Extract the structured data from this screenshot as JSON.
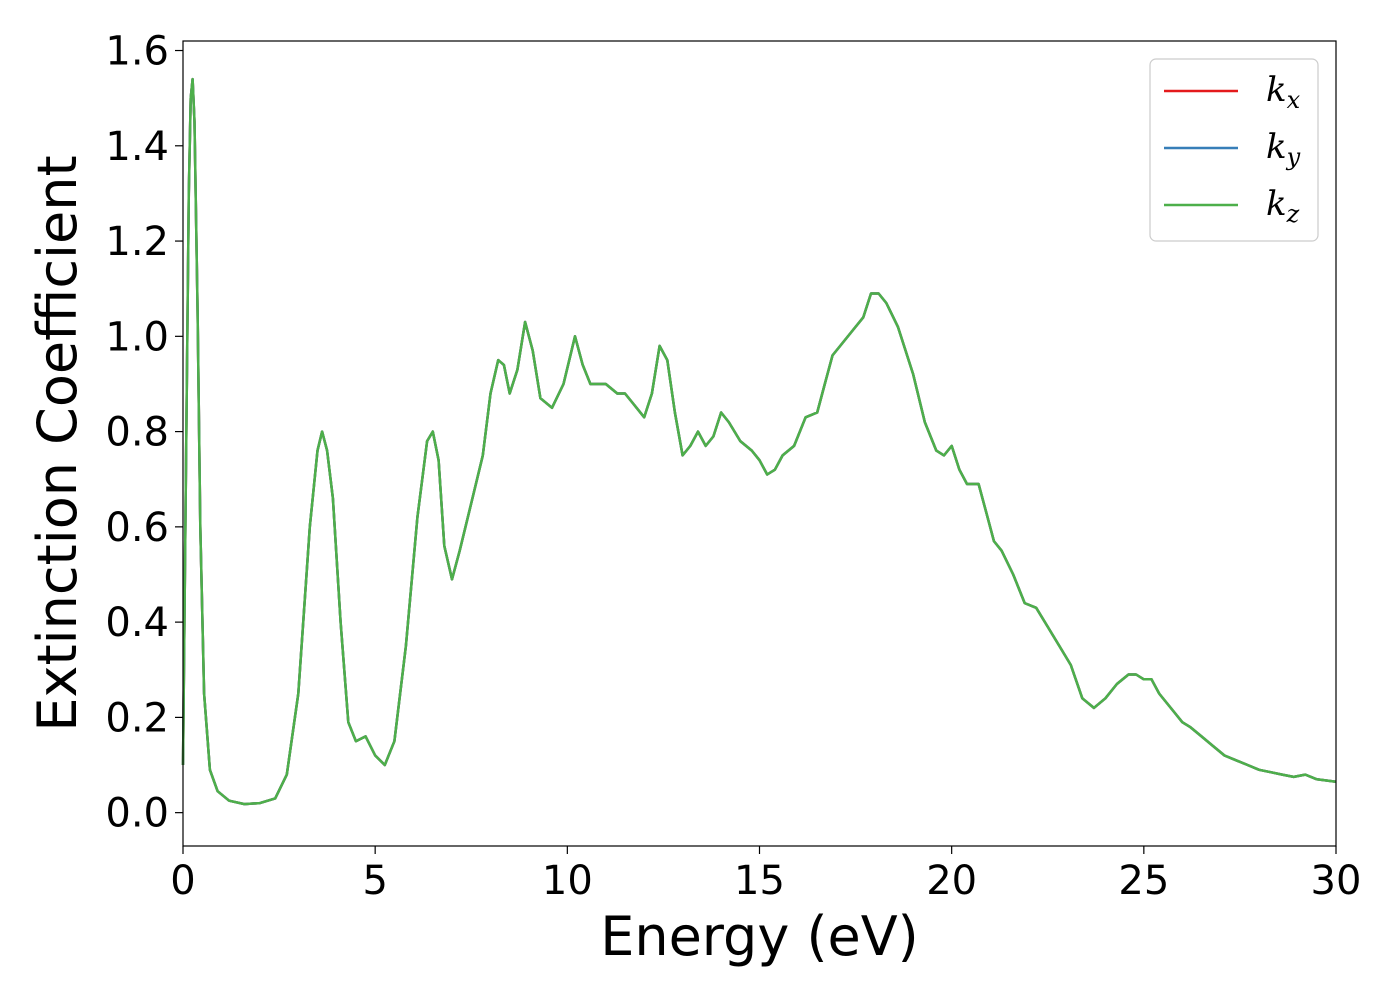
{
  "chart_data": {
    "type": "line",
    "title": "",
    "xlabel": "Energy (eV)",
    "ylabel": "Extinction Coefficient",
    "xlim": [
      0,
      30
    ],
    "ylim": [
      -0.07,
      1.62
    ],
    "xticks": [
      0,
      5,
      10,
      15,
      20,
      25,
      30
    ],
    "xtick_labels": [
      "0",
      "5",
      "10",
      "15",
      "20",
      "25",
      "30"
    ],
    "yticks": [
      0.0,
      0.2,
      0.4,
      0.6,
      0.8,
      1.0,
      1.2,
      1.4,
      1.6
    ],
    "ytick_labels": [
      "0.0",
      "0.2",
      "0.4",
      "0.6",
      "0.8",
      "1.0",
      "1.2",
      "1.4",
      "1.6"
    ],
    "grid": false,
    "legend_position": "top-right",
    "series": [
      {
        "name": "k",
        "subscript": "x",
        "color": "#e41a1c",
        "x": [
          0.0,
          0.08,
          0.15,
          0.2,
          0.25,
          0.3,
          0.38,
          0.45,
          0.55,
          0.7,
          0.9,
          1.2,
          1.6,
          2.0,
          2.4,
          2.7,
          3.0,
          3.3,
          3.5,
          3.62,
          3.75,
          3.9,
          4.1,
          4.3,
          4.5,
          4.75,
          5.0,
          5.25,
          5.5,
          5.8,
          6.1,
          6.35,
          6.5,
          6.65,
          6.8,
          7.0,
          7.2,
          7.5,
          7.8,
          8.0,
          8.2,
          8.35,
          8.5,
          8.7,
          8.9,
          9.1,
          9.3,
          9.6,
          9.9,
          10.2,
          10.4,
          10.6,
          10.8,
          11.0,
          11.3,
          11.5,
          11.7,
          12.0,
          12.2,
          12.4,
          12.6,
          12.8,
          13.0,
          13.2,
          13.4,
          13.6,
          13.8,
          14.0,
          14.2,
          14.5,
          14.8,
          15.0,
          15.2,
          15.4,
          15.6,
          15.9,
          16.2,
          16.5,
          16.7,
          16.9,
          17.1,
          17.4,
          17.7,
          17.9,
          18.1,
          18.3,
          18.6,
          19.0,
          19.3,
          19.6,
          19.8,
          20.0,
          20.2,
          20.4,
          20.7,
          20.9,
          21.1,
          21.3,
          21.6,
          21.9,
          22.2,
          22.5,
          22.8,
          23.1,
          23.4,
          23.7,
          24.0,
          24.3,
          24.6,
          24.8,
          25.0,
          25.2,
          25.4,
          25.6,
          25.8,
          26.0,
          26.2,
          26.5,
          26.8,
          27.1,
          27.4,
          27.7,
          28.0,
          28.3,
          28.6,
          28.9,
          29.2,
          29.5,
          30.0
        ],
        "y": [
          0.1,
          0.75,
          1.3,
          1.5,
          1.54,
          1.45,
          1.05,
          0.6,
          0.25,
          0.09,
          0.045,
          0.025,
          0.018,
          0.02,
          0.03,
          0.08,
          0.25,
          0.6,
          0.76,
          0.8,
          0.76,
          0.66,
          0.4,
          0.19,
          0.15,
          0.16,
          0.12,
          0.1,
          0.15,
          0.35,
          0.62,
          0.78,
          0.8,
          0.74,
          0.56,
          0.49,
          0.55,
          0.65,
          0.75,
          0.88,
          0.95,
          0.94,
          0.88,
          0.93,
          1.03,
          0.97,
          0.87,
          0.85,
          0.9,
          1.0,
          0.94,
          0.9,
          0.9,
          0.9,
          0.88,
          0.88,
          0.86,
          0.83,
          0.88,
          0.98,
          0.95,
          0.84,
          0.75,
          0.77,
          0.8,
          0.77,
          0.79,
          0.84,
          0.82,
          0.78,
          0.76,
          0.74,
          0.71,
          0.72,
          0.75,
          0.77,
          0.83,
          0.84,
          0.9,
          0.96,
          0.98,
          1.01,
          1.04,
          1.09,
          1.09,
          1.07,
          1.02,
          0.92,
          0.82,
          0.76,
          0.75,
          0.77,
          0.72,
          0.69,
          0.69,
          0.63,
          0.57,
          0.55,
          0.5,
          0.44,
          0.43,
          0.39,
          0.35,
          0.31,
          0.24,
          0.22,
          0.24,
          0.27,
          0.29,
          0.29,
          0.28,
          0.28,
          0.25,
          0.23,
          0.21,
          0.19,
          0.18,
          0.16,
          0.14,
          0.12,
          0.11,
          0.1,
          0.09,
          0.085,
          0.08,
          0.075,
          0.08,
          0.07,
          0.065
        ]
      },
      {
        "name": "k",
        "subscript": "y",
        "color": "#377eb8",
        "x": [
          0.0,
          0.08,
          0.15,
          0.2,
          0.25,
          0.3,
          0.38,
          0.45,
          0.55,
          0.7,
          0.9,
          1.2,
          1.6,
          2.0,
          2.4,
          2.7,
          3.0,
          3.3,
          3.5,
          3.62,
          3.75,
          3.9,
          4.1,
          4.3,
          4.5,
          4.75,
          5.0,
          5.25,
          5.5,
          5.8,
          6.1,
          6.35,
          6.5,
          6.65,
          6.8,
          7.0,
          7.2,
          7.5,
          7.8,
          8.0,
          8.2,
          8.35,
          8.5,
          8.7,
          8.9,
          9.1,
          9.3,
          9.6,
          9.9,
          10.2,
          10.4,
          10.6,
          10.8,
          11.0,
          11.3,
          11.5,
          11.7,
          12.0,
          12.2,
          12.4,
          12.6,
          12.8,
          13.0,
          13.2,
          13.4,
          13.6,
          13.8,
          14.0,
          14.2,
          14.5,
          14.8,
          15.0,
          15.2,
          15.4,
          15.6,
          15.9,
          16.2,
          16.5,
          16.7,
          16.9,
          17.1,
          17.4,
          17.7,
          17.9,
          18.1,
          18.3,
          18.6,
          19.0,
          19.3,
          19.6,
          19.8,
          20.0,
          20.2,
          20.4,
          20.7,
          20.9,
          21.1,
          21.3,
          21.6,
          21.9,
          22.2,
          22.5,
          22.8,
          23.1,
          23.4,
          23.7,
          24.0,
          24.3,
          24.6,
          24.8,
          25.0,
          25.2,
          25.4,
          25.6,
          25.8,
          26.0,
          26.2,
          26.5,
          26.8,
          27.1,
          27.4,
          27.7,
          28.0,
          28.3,
          28.6,
          28.9,
          29.2,
          29.5,
          30.0
        ],
        "y": [
          0.1,
          0.75,
          1.3,
          1.5,
          1.54,
          1.45,
          1.05,
          0.6,
          0.25,
          0.09,
          0.045,
          0.025,
          0.018,
          0.02,
          0.03,
          0.08,
          0.25,
          0.6,
          0.76,
          0.8,
          0.76,
          0.66,
          0.4,
          0.19,
          0.15,
          0.16,
          0.12,
          0.1,
          0.15,
          0.35,
          0.62,
          0.78,
          0.8,
          0.74,
          0.56,
          0.49,
          0.55,
          0.65,
          0.75,
          0.88,
          0.95,
          0.94,
          0.88,
          0.93,
          1.03,
          0.97,
          0.87,
          0.85,
          0.9,
          1.0,
          0.94,
          0.9,
          0.9,
          0.9,
          0.88,
          0.88,
          0.86,
          0.83,
          0.88,
          0.98,
          0.95,
          0.84,
          0.75,
          0.77,
          0.8,
          0.77,
          0.79,
          0.84,
          0.82,
          0.78,
          0.76,
          0.74,
          0.71,
          0.72,
          0.75,
          0.77,
          0.83,
          0.84,
          0.9,
          0.96,
          0.98,
          1.01,
          1.04,
          1.09,
          1.09,
          1.07,
          1.02,
          0.92,
          0.82,
          0.76,
          0.75,
          0.77,
          0.72,
          0.69,
          0.69,
          0.63,
          0.57,
          0.55,
          0.5,
          0.44,
          0.43,
          0.39,
          0.35,
          0.31,
          0.24,
          0.22,
          0.24,
          0.27,
          0.29,
          0.29,
          0.28,
          0.28,
          0.25,
          0.23,
          0.21,
          0.19,
          0.18,
          0.16,
          0.14,
          0.12,
          0.11,
          0.1,
          0.09,
          0.085,
          0.08,
          0.075,
          0.08,
          0.07,
          0.065
        ]
      },
      {
        "name": "k",
        "subscript": "z",
        "color": "#4daf4a",
        "x": [
          0.0,
          0.08,
          0.15,
          0.2,
          0.25,
          0.3,
          0.38,
          0.45,
          0.55,
          0.7,
          0.9,
          1.2,
          1.6,
          2.0,
          2.4,
          2.7,
          3.0,
          3.3,
          3.5,
          3.62,
          3.75,
          3.9,
          4.1,
          4.3,
          4.5,
          4.75,
          5.0,
          5.25,
          5.5,
          5.8,
          6.1,
          6.35,
          6.5,
          6.65,
          6.8,
          7.0,
          7.2,
          7.5,
          7.8,
          8.0,
          8.2,
          8.35,
          8.5,
          8.7,
          8.9,
          9.1,
          9.3,
          9.6,
          9.9,
          10.2,
          10.4,
          10.6,
          10.8,
          11.0,
          11.3,
          11.5,
          11.7,
          12.0,
          12.2,
          12.4,
          12.6,
          12.8,
          13.0,
          13.2,
          13.4,
          13.6,
          13.8,
          14.0,
          14.2,
          14.5,
          14.8,
          15.0,
          15.2,
          15.4,
          15.6,
          15.9,
          16.2,
          16.5,
          16.7,
          16.9,
          17.1,
          17.4,
          17.7,
          17.9,
          18.1,
          18.3,
          18.6,
          19.0,
          19.3,
          19.6,
          19.8,
          20.0,
          20.2,
          20.4,
          20.7,
          20.9,
          21.1,
          21.3,
          21.6,
          21.9,
          22.2,
          22.5,
          22.8,
          23.1,
          23.4,
          23.7,
          24.0,
          24.3,
          24.6,
          24.8,
          25.0,
          25.2,
          25.4,
          25.6,
          25.8,
          26.0,
          26.2,
          26.5,
          26.8,
          27.1,
          27.4,
          27.7,
          28.0,
          28.3,
          28.6,
          28.9,
          29.2,
          29.5,
          30.0
        ],
        "y": [
          0.1,
          0.75,
          1.3,
          1.5,
          1.54,
          1.45,
          1.05,
          0.6,
          0.25,
          0.09,
          0.045,
          0.025,
          0.018,
          0.02,
          0.03,
          0.08,
          0.25,
          0.6,
          0.76,
          0.8,
          0.76,
          0.66,
          0.4,
          0.19,
          0.15,
          0.16,
          0.12,
          0.1,
          0.15,
          0.35,
          0.62,
          0.78,
          0.8,
          0.74,
          0.56,
          0.49,
          0.55,
          0.65,
          0.75,
          0.88,
          0.95,
          0.94,
          0.88,
          0.93,
          1.03,
          0.97,
          0.87,
          0.85,
          0.9,
          1.0,
          0.94,
          0.9,
          0.9,
          0.9,
          0.88,
          0.88,
          0.86,
          0.83,
          0.88,
          0.98,
          0.95,
          0.84,
          0.75,
          0.77,
          0.8,
          0.77,
          0.79,
          0.84,
          0.82,
          0.78,
          0.76,
          0.74,
          0.71,
          0.72,
          0.75,
          0.77,
          0.83,
          0.84,
          0.9,
          0.96,
          0.98,
          1.01,
          1.04,
          1.09,
          1.09,
          1.07,
          1.02,
          0.92,
          0.82,
          0.76,
          0.75,
          0.77,
          0.72,
          0.69,
          0.69,
          0.63,
          0.57,
          0.55,
          0.5,
          0.44,
          0.43,
          0.39,
          0.35,
          0.31,
          0.24,
          0.22,
          0.24,
          0.27,
          0.29,
          0.29,
          0.28,
          0.28,
          0.25,
          0.23,
          0.21,
          0.19,
          0.18,
          0.16,
          0.14,
          0.12,
          0.11,
          0.1,
          0.09,
          0.085,
          0.08,
          0.075,
          0.08,
          0.07,
          0.065
        ]
      }
    ]
  }
}
